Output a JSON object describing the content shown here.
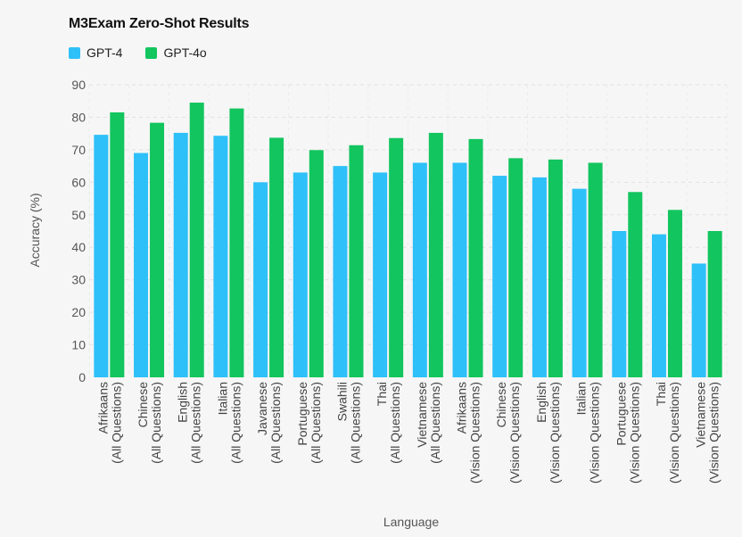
{
  "chart_data": {
    "type": "bar",
    "title": "M3Exam Zero-Shot Results",
    "xlabel": "Language",
    "ylabel": "Accuracy (%)",
    "ylim": [
      0,
      90
    ],
    "yticks": [
      0,
      10,
      20,
      30,
      40,
      50,
      60,
      70,
      80,
      90
    ],
    "grid": true,
    "legend_position": "top-left",
    "categories": [
      [
        "Afrikaans",
        "(All Questions)"
      ],
      [
        "Chinese",
        "(All Questions)"
      ],
      [
        "English",
        "(All Questions)"
      ],
      [
        "Italian",
        "(All Questions)"
      ],
      [
        "Javanese",
        "(All Questions)"
      ],
      [
        "Portuguese",
        "(All Questions)"
      ],
      [
        "Swahili",
        "(All Questions)"
      ],
      [
        "Thai",
        "(All Questions)"
      ],
      [
        "Vietnamese",
        "(All Questions)"
      ],
      [
        "Afrikaans",
        "(Vision Questions)"
      ],
      [
        "Chinese",
        "(Vision Questions)"
      ],
      [
        "English",
        "(Vision Questions)"
      ],
      [
        "Italian",
        "(Vision Questions)"
      ],
      [
        "Portuguese",
        "(Vision Questions)"
      ],
      [
        "Thai",
        "(Vision Questions)"
      ],
      [
        "Vietnamese",
        "(Vision Questions)"
      ]
    ],
    "series": [
      {
        "name": "GPT-4",
        "color": "#2ec0f9",
        "values": [
          74.6,
          69.0,
          75.2,
          74.3,
          60.0,
          63.0,
          65.0,
          63.0,
          66.0,
          66.0,
          62.0,
          61.5,
          58.0,
          45.0,
          44.0,
          35.0
        ]
      },
      {
        "name": "GPT-4o",
        "color": "#12c55e",
        "values": [
          81.5,
          78.3,
          84.5,
          82.7,
          73.7,
          69.9,
          71.4,
          73.6,
          75.2,
          73.3,
          67.4,
          67.0,
          66.0,
          57.0,
          51.5,
          45.0
        ]
      }
    ]
  }
}
